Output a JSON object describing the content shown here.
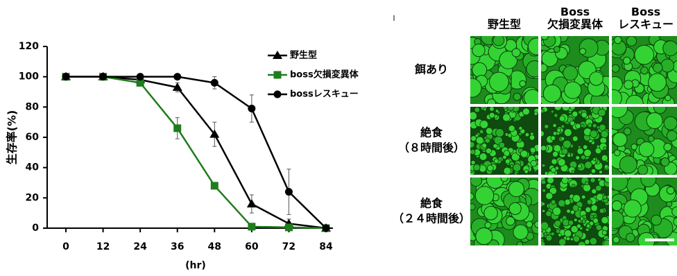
{
  "chart_data": {
    "type": "line",
    "ylabel": "生存率(%)",
    "xlabel": "(hr)",
    "x": [
      0,
      12,
      24,
      36,
      48,
      60,
      72,
      84
    ],
    "xlim": [
      -5,
      89
    ],
    "xticks": [
      0,
      12,
      24,
      36,
      48,
      60,
      72,
      84
    ],
    "ylim": [
      0,
      120
    ],
    "yticks": [
      0,
      20,
      40,
      60,
      80,
      100,
      120
    ],
    "legend": "upper right",
    "series": [
      {
        "name": "野生型",
        "color": "#000000",
        "marker": "triangle",
        "values": [
          100,
          100,
          98,
          93,
          62,
          16,
          3,
          0
        ],
        "errors": [
          0,
          0,
          2,
          3,
          8,
          6,
          3,
          0
        ]
      },
      {
        "name": "boss欠損変異体",
        "color": "#1e7d1e",
        "marker": "square",
        "values": [
          100,
          100,
          96,
          66,
          28,
          1,
          0.5,
          0
        ],
        "errors": [
          0,
          0,
          2,
          7,
          2,
          0,
          0,
          0
        ]
      },
      {
        "name": "bossレスキュー",
        "color": "#000000",
        "marker": "circle",
        "values": [
          100,
          100,
          100,
          100,
          96,
          79,
          24,
          0
        ],
        "errors": [
          0,
          0,
          0,
          0,
          4,
          9,
          15,
          0
        ]
      }
    ]
  },
  "image_panel": {
    "columns": [
      [
        "野生型"
      ],
      [
        "Boss",
        "欠損変異体"
      ],
      [
        "Boss",
        "レスキュー"
      ]
    ],
    "rows": [
      [
        "餌あり"
      ],
      [
        "絶食",
        "（８時間後）"
      ],
      [
        "絶食",
        "（２４時間後）"
      ]
    ]
  }
}
